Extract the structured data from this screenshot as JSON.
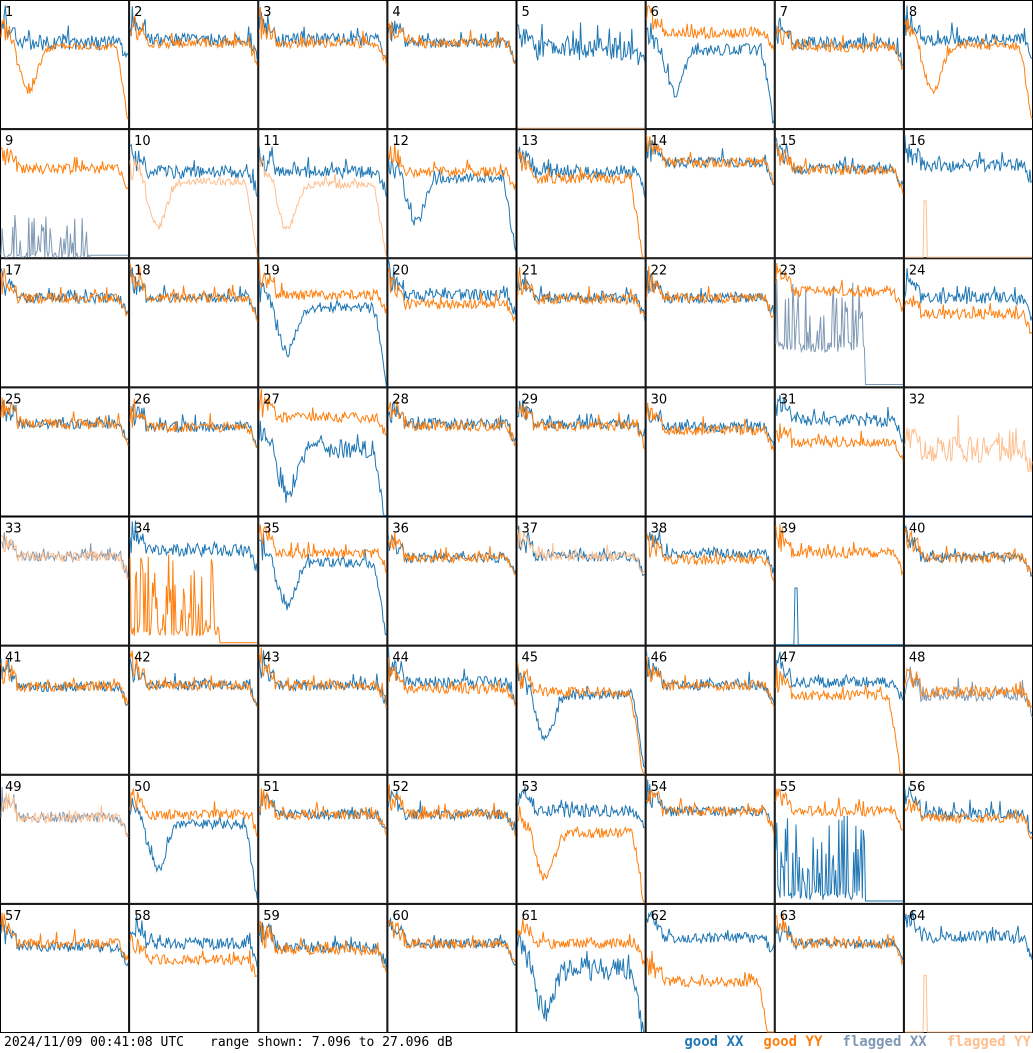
{
  "chart_data": {
    "type": "line",
    "title": "",
    "timestamp": "2024/11/09 00:41:08 UTC",
    "range_text": "range shown: 7.096 to 27.096 dB",
    "ylim": [
      7.096,
      27.096
    ],
    "grid": {
      "rows": 8,
      "cols": 8
    },
    "series_styles": [
      {
        "name": "good XX",
        "color": "#1f77b4"
      },
      {
        "name": "good YY",
        "color": "#ff7f0e"
      },
      {
        "name": "flagged XX",
        "color": "#7f99b4"
      },
      {
        "name": "flagged YY",
        "color": "#ffbf8f"
      }
    ],
    "panels": [
      {
        "label": "1",
        "xx": {
          "shape": "flat",
          "level": 20.5,
          "noise": 1.2,
          "flag": false
        },
        "yy": {
          "shape": "dip",
          "level": 20.0,
          "noise": 0.6,
          "flag": false
        }
      },
      {
        "label": "2",
        "xx": {
          "shape": "flat",
          "level": 21.0,
          "noise": 1.0,
          "flag": false
        },
        "yy": {
          "shape": "flat",
          "level": 20.5,
          "noise": 0.8,
          "flag": false
        }
      },
      {
        "label": "3",
        "xx": {
          "shape": "flat",
          "level": 21.0,
          "noise": 1.0,
          "flag": false
        },
        "yy": {
          "shape": "flat",
          "level": 20.5,
          "noise": 0.8,
          "flag": false
        }
      },
      {
        "label": "4",
        "xx": {
          "shape": "flat",
          "level": 20.5,
          "noise": 0.8,
          "flag": false
        },
        "yy": {
          "shape": "flat",
          "level": 20.5,
          "noise": 0.8,
          "flag": false
        }
      },
      {
        "label": "5",
        "xx": {
          "shape": "flat",
          "level": 19.5,
          "noise": 1.8,
          "flag": false
        },
        "yy": {
          "shape": "none",
          "level": 7.1,
          "noise": 0,
          "flag": true
        }
      },
      {
        "label": "6",
        "xx": {
          "shape": "dip",
          "level": 19.5,
          "noise": 1.0,
          "flag": false
        },
        "yy": {
          "shape": "flat",
          "level": 22.0,
          "noise": 0.8,
          "flag": false
        }
      },
      {
        "label": "7",
        "xx": {
          "shape": "flat",
          "level": 20.5,
          "noise": 1.0,
          "flag": false
        },
        "yy": {
          "shape": "flat",
          "level": 19.8,
          "noise": 0.8,
          "flag": false
        }
      },
      {
        "label": "8",
        "xx": {
          "shape": "flat",
          "level": 21.0,
          "noise": 1.0,
          "flag": false
        },
        "yy": {
          "shape": "dip",
          "level": 20.0,
          "noise": 0.6,
          "flag": false
        }
      },
      {
        "label": "9",
        "xx": {
          "shape": "spikes",
          "level": 8.0,
          "noise": 3.0,
          "flag": true
        },
        "yy": {
          "shape": "flat",
          "level": 21.0,
          "noise": 0.8,
          "flag": false
        }
      },
      {
        "label": "10",
        "xx": {
          "shape": "flat",
          "level": 20.5,
          "noise": 1.0,
          "flag": false
        },
        "yy": {
          "shape": "dip",
          "level": 19.0,
          "noise": 0.6,
          "flag": true
        }
      },
      {
        "label": "11",
        "xx": {
          "shape": "flat",
          "level": 20.5,
          "noise": 1.0,
          "flag": false
        },
        "yy": {
          "shape": "dip",
          "level": 18.5,
          "noise": 0.6,
          "flag": true
        }
      },
      {
        "label": "12",
        "xx": {
          "shape": "dip",
          "level": 19.5,
          "noise": 0.8,
          "flag": false
        },
        "yy": {
          "shape": "flat",
          "level": 20.5,
          "noise": 0.8,
          "flag": false
        }
      },
      {
        "label": "13",
        "xx": {
          "shape": "flat",
          "level": 20.5,
          "noise": 1.0,
          "flag": false
        },
        "yy": {
          "shape": "drop",
          "level": 19.5,
          "noise": 0.8,
          "flag": false
        }
      },
      {
        "label": "14",
        "xx": {
          "shape": "flat",
          "level": 22.0,
          "noise": 0.8,
          "flag": false
        },
        "yy": {
          "shape": "flat",
          "level": 22.0,
          "noise": 0.8,
          "flag": false
        }
      },
      {
        "label": "15",
        "xx": {
          "shape": "flat",
          "level": 21.0,
          "noise": 0.8,
          "flag": false
        },
        "yy": {
          "shape": "flat",
          "level": 20.8,
          "noise": 0.8,
          "flag": false
        }
      },
      {
        "label": "16",
        "xx": {
          "shape": "flat",
          "level": 21.5,
          "noise": 1.0,
          "flag": false
        },
        "yy": {
          "shape": "spike1",
          "level": 8.0,
          "noise": 0,
          "flag": true
        }
      },
      {
        "label": "17",
        "xx": {
          "shape": "flat",
          "level": 21.0,
          "noise": 0.8,
          "flag": false
        },
        "yy": {
          "shape": "flat",
          "level": 21.0,
          "noise": 0.8,
          "flag": false
        }
      },
      {
        "label": "18",
        "xx": {
          "shape": "flat",
          "level": 21.0,
          "noise": 0.8,
          "flag": false
        },
        "yy": {
          "shape": "flat",
          "level": 21.0,
          "noise": 0.8,
          "flag": false
        }
      },
      {
        "label": "19",
        "xx": {
          "shape": "dip",
          "level": 19.5,
          "noise": 0.8,
          "flag": false
        },
        "yy": {
          "shape": "flat",
          "level": 21.5,
          "noise": 0.8,
          "flag": false
        }
      },
      {
        "label": "20",
        "xx": {
          "shape": "flat",
          "level": 21.5,
          "noise": 0.9,
          "flag": false
        },
        "yy": {
          "shape": "flat",
          "level": 20.0,
          "noise": 0.8,
          "flag": false
        }
      },
      {
        "label": "21",
        "xx": {
          "shape": "flat",
          "level": 21.0,
          "noise": 0.8,
          "flag": false
        },
        "yy": {
          "shape": "flat",
          "level": 20.8,
          "noise": 0.8,
          "flag": false
        }
      },
      {
        "label": "22",
        "xx": {
          "shape": "flat",
          "level": 21.0,
          "noise": 0.8,
          "flag": false
        },
        "yy": {
          "shape": "flat",
          "level": 21.0,
          "noise": 0.8,
          "flag": false
        }
      },
      {
        "label": "23",
        "xx": {
          "shape": "spikes",
          "level": 14.0,
          "noise": 5.0,
          "flag": true
        },
        "yy": {
          "shape": "flat",
          "level": 22.0,
          "noise": 0.8,
          "flag": false
        }
      },
      {
        "label": "24",
        "xx": {
          "shape": "flat",
          "level": 21.0,
          "noise": 1.0,
          "flag": false
        },
        "yy": {
          "shape": "flat",
          "level": 18.5,
          "noise": 0.8,
          "flag": false
        }
      },
      {
        "label": "25",
        "xx": {
          "shape": "flat",
          "level": 21.5,
          "noise": 0.8,
          "flag": false
        },
        "yy": {
          "shape": "flat",
          "level": 21.5,
          "noise": 0.8,
          "flag": false
        }
      },
      {
        "label": "26",
        "xx": {
          "shape": "flat",
          "level": 21.0,
          "noise": 0.8,
          "flag": false
        },
        "yy": {
          "shape": "flat",
          "level": 21.0,
          "noise": 0.8,
          "flag": false
        }
      },
      {
        "label": "27",
        "xx": {
          "shape": "dip",
          "level": 17.5,
          "noise": 1.5,
          "flag": false
        },
        "yy": {
          "shape": "flat",
          "level": 22.5,
          "noise": 0.8,
          "flag": false
        }
      },
      {
        "label": "28",
        "xx": {
          "shape": "flat",
          "level": 21.5,
          "noise": 0.9,
          "flag": false
        },
        "yy": {
          "shape": "flat",
          "level": 21.2,
          "noise": 0.8,
          "flag": false
        }
      },
      {
        "label": "29",
        "xx": {
          "shape": "flat",
          "level": 21.5,
          "noise": 0.9,
          "flag": false
        },
        "yy": {
          "shape": "flat",
          "level": 21.2,
          "noise": 0.8,
          "flag": false
        }
      },
      {
        "label": "30",
        "xx": {
          "shape": "flat",
          "level": 21.0,
          "noise": 0.9,
          "flag": false
        },
        "yy": {
          "shape": "flat",
          "level": 20.5,
          "noise": 0.8,
          "flag": false
        }
      },
      {
        "label": "31",
        "xx": {
          "shape": "flat",
          "level": 22.0,
          "noise": 0.9,
          "flag": false
        },
        "yy": {
          "shape": "flat",
          "level": 18.5,
          "noise": 0.8,
          "flag": false
        }
      },
      {
        "label": "32",
        "xx": {
          "shape": "none",
          "level": 7.1,
          "noise": 0,
          "flag": true
        },
        "yy": {
          "shape": "flat",
          "level": 17.5,
          "noise": 2.0,
          "flag": true
        }
      },
      {
        "label": "33",
        "xx": {
          "shape": "flat",
          "level": 21.0,
          "noise": 0.8,
          "flag": true
        },
        "yy": {
          "shape": "flat",
          "level": 21.0,
          "noise": 0.8,
          "flag": true
        }
      },
      {
        "label": "34",
        "xx": {
          "shape": "flat",
          "level": 22.0,
          "noise": 1.0,
          "flag": false
        },
        "yy": {
          "shape": "spikes",
          "level": 10.0,
          "noise": 6.0,
          "flag": false
        }
      },
      {
        "label": "35",
        "xx": {
          "shape": "dip",
          "level": 20.0,
          "noise": 0.8,
          "flag": false
        },
        "yy": {
          "shape": "flat",
          "level": 21.5,
          "noise": 0.8,
          "flag": false
        }
      },
      {
        "label": "36",
        "xx": {
          "shape": "flat",
          "level": 20.8,
          "noise": 0.8,
          "flag": false
        },
        "yy": {
          "shape": "flat",
          "level": 20.8,
          "noise": 0.8,
          "flag": false
        }
      },
      {
        "label": "37",
        "xx": {
          "shape": "flat",
          "level": 21.0,
          "noise": 0.8,
          "flag": false
        },
        "yy": {
          "shape": "flat",
          "level": 21.0,
          "noise": 0.8,
          "flag": true
        }
      },
      {
        "label": "38",
        "xx": {
          "shape": "flat",
          "level": 21.5,
          "noise": 0.8,
          "flag": false
        },
        "yy": {
          "shape": "flat",
          "level": 20.5,
          "noise": 0.8,
          "flag": false
        }
      },
      {
        "label": "39",
        "xx": {
          "shape": "spike1",
          "level": 8.0,
          "noise": 0,
          "flag": false
        },
        "yy": {
          "shape": "flat",
          "level": 21.5,
          "noise": 0.8,
          "flag": false
        }
      },
      {
        "label": "40",
        "xx": {
          "shape": "flat",
          "level": 20.8,
          "noise": 0.8,
          "flag": false
        },
        "yy": {
          "shape": "flat",
          "level": 20.8,
          "noise": 0.8,
          "flag": false
        }
      },
      {
        "label": "41",
        "xx": {
          "shape": "flat",
          "level": 20.8,
          "noise": 0.8,
          "flag": false
        },
        "yy": {
          "shape": "flat",
          "level": 20.8,
          "noise": 0.8,
          "flag": false
        }
      },
      {
        "label": "42",
        "xx": {
          "shape": "flat",
          "level": 21.0,
          "noise": 0.8,
          "flag": false
        },
        "yy": {
          "shape": "flat",
          "level": 21.0,
          "noise": 0.8,
          "flag": false
        }
      },
      {
        "label": "43",
        "xx": {
          "shape": "flat",
          "level": 21.0,
          "noise": 0.8,
          "flag": false
        },
        "yy": {
          "shape": "flat",
          "level": 21.0,
          "noise": 0.8,
          "flag": false
        }
      },
      {
        "label": "44",
        "xx": {
          "shape": "flat",
          "level": 21.5,
          "noise": 0.9,
          "flag": false
        },
        "yy": {
          "shape": "flat",
          "level": 20.5,
          "noise": 0.8,
          "flag": false
        }
      },
      {
        "label": "45",
        "xx": {
          "shape": "dip",
          "level": 19.5,
          "noise": 0.8,
          "flag": false
        },
        "yy": {
          "shape": "drop",
          "level": 20.0,
          "noise": 0.8,
          "flag": false
        }
      },
      {
        "label": "46",
        "xx": {
          "shape": "flat",
          "level": 21.0,
          "noise": 0.8,
          "flag": false
        },
        "yy": {
          "shape": "flat",
          "level": 21.0,
          "noise": 0.8,
          "flag": false
        }
      },
      {
        "label": "47",
        "xx": {
          "shape": "flat",
          "level": 21.5,
          "noise": 0.9,
          "flag": false
        },
        "yy": {
          "shape": "drop",
          "level": 19.5,
          "noise": 0.8,
          "flag": false
        }
      },
      {
        "label": "48",
        "xx": {
          "shape": "flat",
          "level": 19.5,
          "noise": 1.0,
          "flag": true
        },
        "yy": {
          "shape": "flat",
          "level": 20.0,
          "noise": 0.8,
          "flag": false
        }
      },
      {
        "label": "49",
        "xx": {
          "shape": "flat",
          "level": 20.5,
          "noise": 0.8,
          "flag": true
        },
        "yy": {
          "shape": "flat",
          "level": 20.5,
          "noise": 0.8,
          "flag": true
        }
      },
      {
        "label": "50",
        "xx": {
          "shape": "dip",
          "level": 19.5,
          "noise": 0.8,
          "flag": false
        },
        "yy": {
          "shape": "flat",
          "level": 21.0,
          "noise": 0.8,
          "flag": false
        }
      },
      {
        "label": "51",
        "xx": {
          "shape": "flat",
          "level": 21.0,
          "noise": 0.8,
          "flag": false
        },
        "yy": {
          "shape": "flat",
          "level": 21.0,
          "noise": 0.8,
          "flag": false
        }
      },
      {
        "label": "52",
        "xx": {
          "shape": "flat",
          "level": 21.0,
          "noise": 0.8,
          "flag": false
        },
        "yy": {
          "shape": "flat",
          "level": 21.0,
          "noise": 0.8,
          "flag": false
        }
      },
      {
        "label": "53",
        "xx": {
          "shape": "flat",
          "level": 21.5,
          "noise": 1.0,
          "flag": false
        },
        "yy": {
          "shape": "dip",
          "level": 18.0,
          "noise": 0.8,
          "flag": false
        }
      },
      {
        "label": "54",
        "xx": {
          "shape": "flat",
          "level": 21.5,
          "noise": 0.8,
          "flag": false
        },
        "yy": {
          "shape": "flat",
          "level": 21.5,
          "noise": 0.8,
          "flag": false
        }
      },
      {
        "label": "55",
        "xx": {
          "shape": "spikes",
          "level": 9.0,
          "noise": 6.0,
          "flag": false
        },
        "yy": {
          "shape": "flat",
          "level": 21.5,
          "noise": 0.8,
          "flag": false
        }
      },
      {
        "label": "56",
        "xx": {
          "shape": "flat",
          "level": 21.0,
          "noise": 0.9,
          "flag": false
        },
        "yy": {
          "shape": "flat",
          "level": 20.5,
          "noise": 0.8,
          "flag": false
        }
      },
      {
        "label": "57",
        "xx": {
          "shape": "flat",
          "level": 20.5,
          "noise": 0.8,
          "flag": false
        },
        "yy": {
          "shape": "flat",
          "level": 21.0,
          "noise": 0.8,
          "flag": false
        }
      },
      {
        "label": "58",
        "xx": {
          "shape": "flat",
          "level": 21.0,
          "noise": 0.9,
          "flag": false
        },
        "yy": {
          "shape": "flat",
          "level": 18.5,
          "noise": 0.8,
          "flag": false
        }
      },
      {
        "label": "59",
        "xx": {
          "shape": "flat",
          "level": 20.5,
          "noise": 0.9,
          "flag": false
        },
        "yy": {
          "shape": "flat",
          "level": 20.0,
          "noise": 0.8,
          "flag": false
        }
      },
      {
        "label": "60",
        "xx": {
          "shape": "flat",
          "level": 21.0,
          "noise": 0.8,
          "flag": false
        },
        "yy": {
          "shape": "flat",
          "level": 21.0,
          "noise": 0.8,
          "flag": false
        }
      },
      {
        "label": "61",
        "xx": {
          "shape": "dip",
          "level": 17.0,
          "noise": 1.8,
          "flag": false
        },
        "yy": {
          "shape": "flat",
          "level": 21.0,
          "noise": 0.8,
          "flag": false
        }
      },
      {
        "label": "62",
        "xx": {
          "shape": "flat",
          "level": 22.0,
          "noise": 0.9,
          "flag": false
        },
        "yy": {
          "shape": "drop",
          "level": 15.0,
          "noise": 0.8,
          "flag": false
        }
      },
      {
        "label": "63",
        "xx": {
          "shape": "flat",
          "level": 21.0,
          "noise": 0.8,
          "flag": false
        },
        "yy": {
          "shape": "flat",
          "level": 21.0,
          "noise": 0.8,
          "flag": false
        }
      },
      {
        "label": "64",
        "xx": {
          "shape": "flat",
          "level": 22.0,
          "noise": 1.0,
          "flag": false
        },
        "yy": {
          "shape": "spike1",
          "level": 8.0,
          "noise": 0,
          "flag": true
        }
      }
    ]
  },
  "footer": {
    "timestamp": "2024/11/09 00:41:08 UTC",
    "range": "range shown: 7.096 to 27.096 dB"
  },
  "legend": {
    "good_xx": "good XX",
    "good_yy": "good YY",
    "flagged_xx": "flagged XX",
    "flagged_yy": "flagged YY",
    "colors": {
      "good_xx": "#1f77b4",
      "good_yy": "#ff7f0e",
      "flagged_xx": "#7f99b4",
      "flagged_yy": "#ffbf8f"
    }
  }
}
